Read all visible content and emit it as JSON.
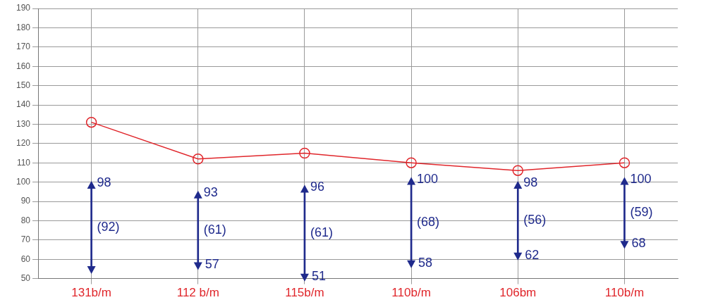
{
  "chart_data": {
    "type": "line",
    "categories": [
      "131b/m",
      "112 b/m",
      "115b/m",
      "110b/m",
      "106bm",
      "110b/m"
    ],
    "series": [
      {
        "color": "#e0262b",
        "marker": "circle",
        "values": [
          131,
          112,
          115,
          110,
          106,
          110
        ]
      }
    ],
    "blood_pressure": {
      "type": "bar",
      "color": "#1f2a8c",
      "systolic": [
        98,
        93,
        96,
        100,
        98,
        100
      ],
      "diastolic": [
        55,
        57,
        51,
        58,
        62,
        68
      ],
      "diastolic_labels": [
        null,
        "57",
        "51",
        "58",
        "62",
        "68"
      ],
      "map": [
        92,
        61,
        61,
        68,
        56,
        59
      ],
      "map_labels": [
        "(92)",
        "(61)",
        "(61)",
        "(68)",
        "(56)",
        "(59)"
      ]
    },
    "ylim": [
      50,
      190
    ],
    "yticks": [
      50,
      60,
      70,
      80,
      90,
      100,
      110,
      120,
      130,
      140,
      150,
      160,
      170,
      180,
      190
    ],
    "grid": true
  }
}
